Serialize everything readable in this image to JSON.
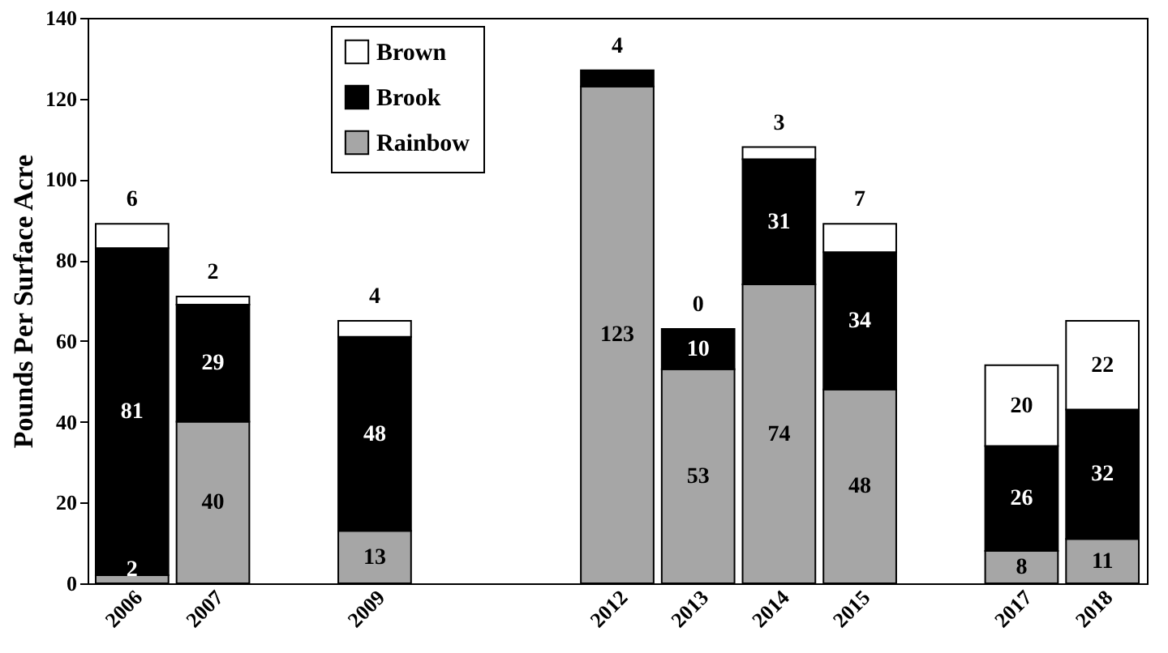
{
  "chart_data": {
    "type": "bar",
    "stacked": true,
    "ylabel": "Pounds Per Surface Acre",
    "categories": [
      "2006",
      "2007",
      null,
      "2009",
      null,
      null,
      "2012",
      "2013",
      "2014",
      "2015",
      null,
      "2017",
      "2018"
    ],
    "series": [
      {
        "name": "Rainbow",
        "color": "#a6a6a6",
        "values": [
          2,
          40,
          null,
          13,
          null,
          null,
          123,
          53,
          74,
          48,
          null,
          8,
          11
        ]
      },
      {
        "name": "Brook",
        "color": "#000000",
        "values": [
          81,
          29,
          null,
          48,
          null,
          null,
          4,
          10,
          31,
          34,
          null,
          26,
          32
        ]
      },
      {
        "name": "Brown",
        "color": "#ffffff",
        "values": [
          6,
          2,
          null,
          4,
          null,
          null,
          0,
          0,
          3,
          7,
          null,
          20,
          22
        ],
        "value_labels": [
          "6",
          "2",
          null,
          "4",
          null,
          null,
          null,
          "0",
          "3",
          "7",
          null,
          "20",
          "22"
        ]
      }
    ],
    "data_labels": true,
    "ylim": [
      0,
      140
    ],
    "yticks": [
      0,
      20,
      40,
      60,
      80,
      100,
      120,
      140
    ],
    "grid": false,
    "legend": "top left"
  }
}
